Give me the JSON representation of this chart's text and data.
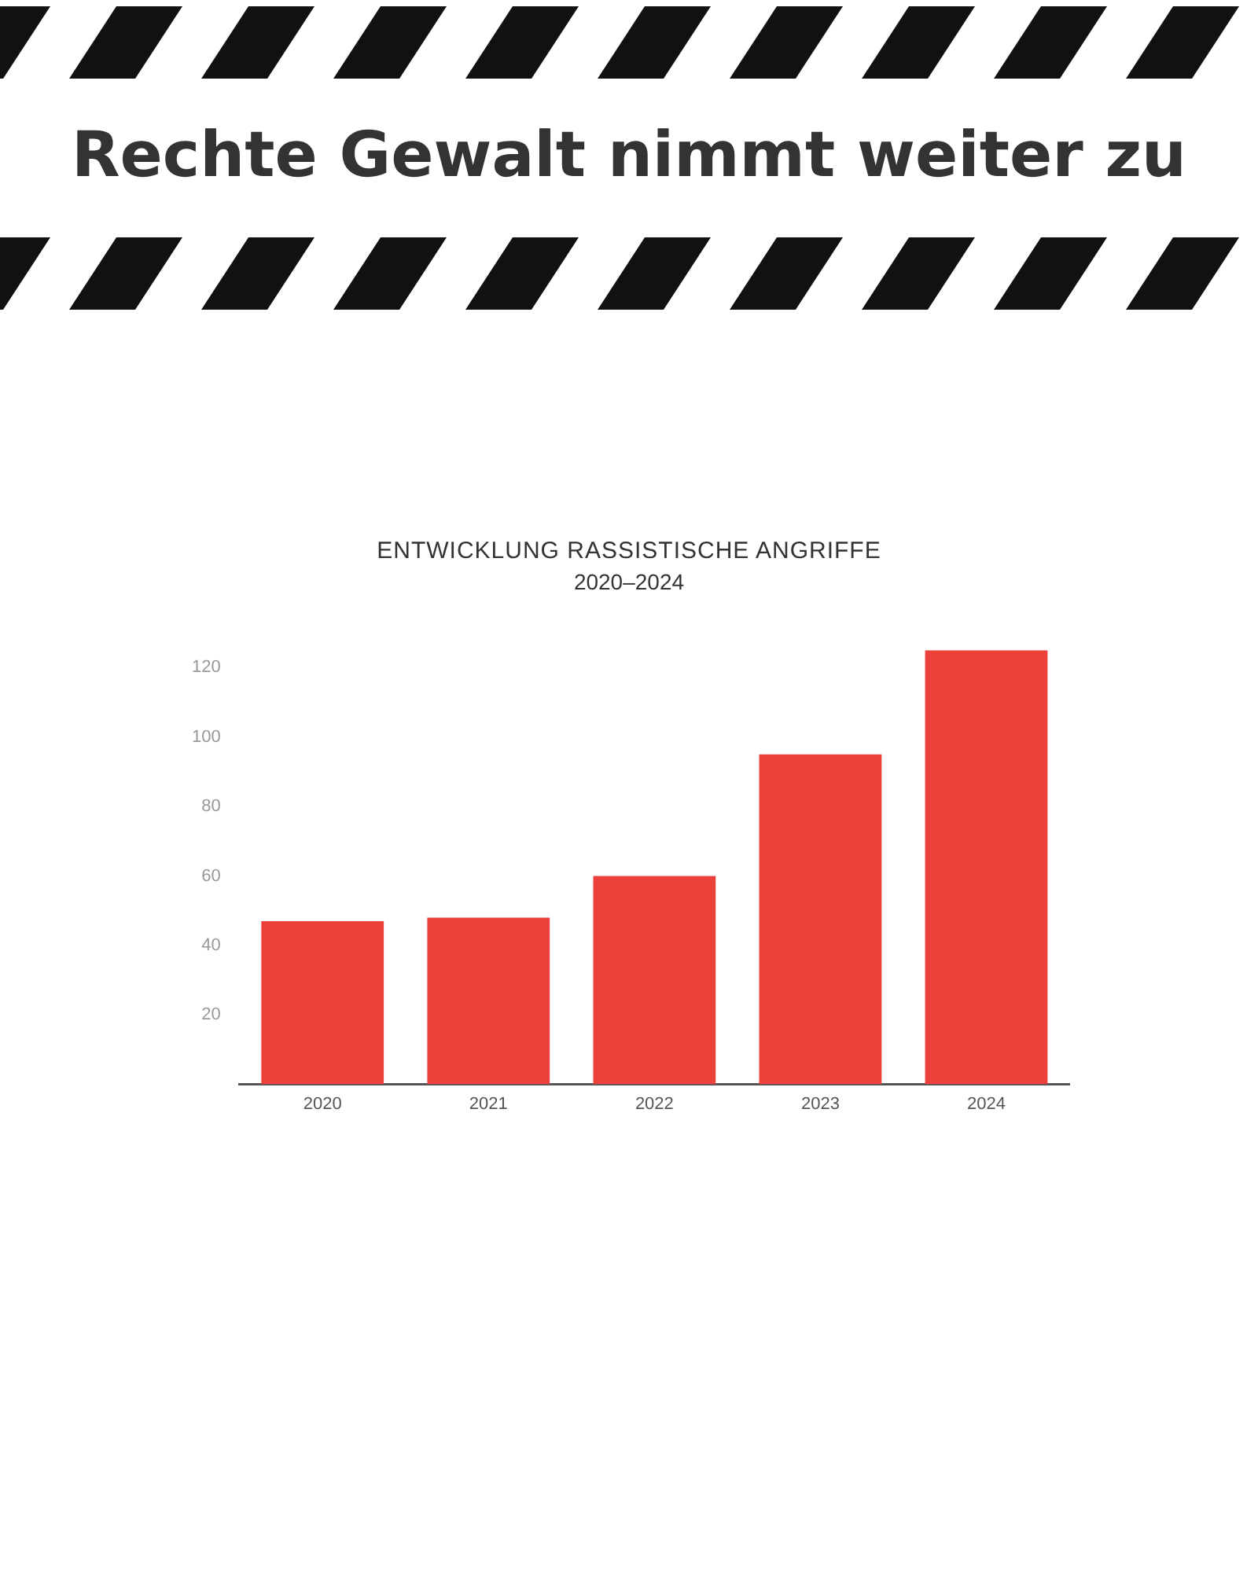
{
  "chart_data": {
    "type": "bar",
    "title": "Rechte Gewalt nimmt weiter zu",
    "subtitle": "ENTWICKLUNG RASSISTISCHE ANGRIFFE",
    "annotations": [
      "2020–2024"
    ],
    "categories": [
      "2020",
      "2021",
      "2022",
      "2023",
      "2024"
    ],
    "values": [
      47,
      48,
      60,
      95,
      125
    ],
    "color": "#ec403a",
    "ylim": [
      0,
      125
    ],
    "yticks": [
      20,
      40,
      60,
      80,
      100,
      120
    ],
    "grid": false,
    "legend": false
  }
}
